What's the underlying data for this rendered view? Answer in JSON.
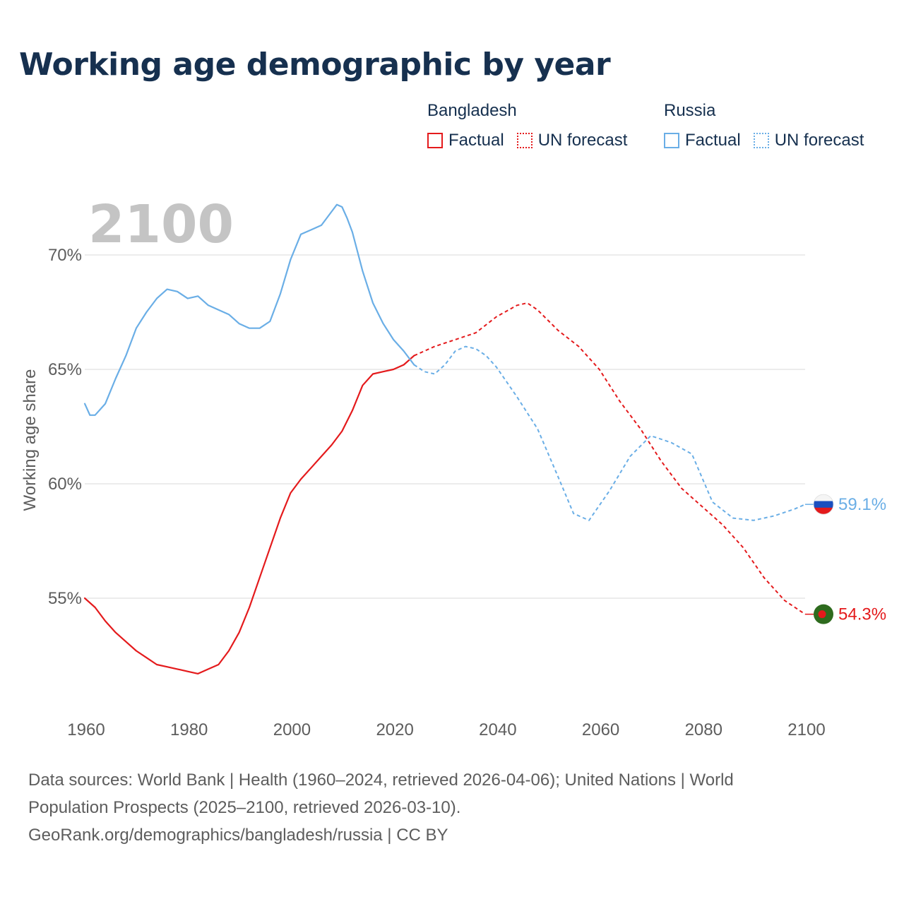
{
  "chart_data": {
    "type": "line",
    "title": "Working age demographic by year",
    "year_label": "2100",
    "ylabel": "Working age share",
    "xlabel": "",
    "xlim": [
      1960,
      2100
    ],
    "ylim": [
      50,
      72.5
    ],
    "y_ticks": [
      55,
      60,
      65,
      70
    ],
    "y_tick_labels": [
      "55%",
      "60%",
      "65%",
      "70%"
    ],
    "x_ticks": [
      1960,
      1980,
      2000,
      2020,
      2040,
      2060,
      2080,
      2100
    ],
    "x_tick_labels": [
      "1960",
      "1980",
      "2000",
      "2020",
      "2040",
      "2060",
      "2080",
      "2100"
    ],
    "legend": {
      "groups": [
        {
          "name": "Bangladesh",
          "items": [
            "Factual",
            "UN forecast"
          ]
        },
        {
          "name": "Russia",
          "items": [
            "Factual",
            "UN forecast"
          ]
        }
      ]
    },
    "series": [
      {
        "name": "Bangladesh",
        "color": "#e41a1c",
        "factual": {
          "x": [
            1960,
            1962,
            1964,
            1966,
            1968,
            1970,
            1972,
            1974,
            1976,
            1978,
            1980,
            1982,
            1984,
            1986,
            1988,
            1990,
            1992,
            1994,
            1996,
            1998,
            2000,
            2002,
            2004,
            2006,
            2008,
            2010,
            2012,
            2014,
            2016,
            2018,
            2020,
            2022,
            2024
          ],
          "y": [
            55.0,
            54.6,
            54.0,
            53.5,
            53.1,
            52.7,
            52.4,
            52.1,
            52.0,
            51.9,
            51.8,
            51.7,
            51.9,
            52.1,
            52.7,
            53.5,
            54.6,
            55.9,
            57.2,
            58.5,
            59.6,
            60.2,
            60.7,
            61.2,
            61.7,
            62.3,
            63.2,
            64.3,
            64.8,
            64.9,
            65.0,
            65.2,
            65.6
          ]
        },
        "forecast": {
          "x": [
            2024,
            2028,
            2032,
            2036,
            2040,
            2044,
            2046,
            2048,
            2052,
            2056,
            2060,
            2064,
            2068,
            2072,
            2076,
            2080,
            2084,
            2088,
            2092,
            2096,
            2100
          ],
          "y": [
            65.6,
            66.0,
            66.3,
            66.6,
            67.3,
            67.8,
            67.9,
            67.6,
            66.7,
            66.0,
            65.0,
            63.6,
            62.4,
            61.0,
            59.8,
            59.0,
            58.2,
            57.2,
            55.9,
            54.9,
            54.3
          ]
        },
        "end_label": "54.3%"
      },
      {
        "name": "Russia",
        "color": "#6aaee6",
        "factual": {
          "x": [
            1960,
            1961,
            1962,
            1964,
            1966,
            1968,
            1970,
            1972,
            1974,
            1976,
            1978,
            1980,
            1982,
            1984,
            1986,
            1988,
            1990,
            1992,
            1994,
            1996,
            1998,
            2000,
            2002,
            2004,
            2006,
            2008,
            2009,
            2010,
            2011,
            2012,
            2014,
            2016,
            2018,
            2020,
            2022,
            2024
          ],
          "y": [
            63.5,
            63.0,
            63.0,
            63.5,
            64.6,
            65.6,
            66.8,
            67.5,
            68.1,
            68.5,
            68.4,
            68.1,
            68.2,
            67.8,
            67.6,
            67.4,
            67.0,
            66.8,
            66.8,
            67.1,
            68.3,
            69.8,
            70.9,
            71.1,
            71.3,
            71.9,
            72.2,
            72.1,
            71.6,
            71.0,
            69.3,
            67.9,
            67.0,
            66.3,
            65.8,
            65.2
          ]
        },
        "forecast": {
          "x": [
            2024,
            2026,
            2028,
            2030,
            2032,
            2034,
            2036,
            2038,
            2040,
            2044,
            2048,
            2052,
            2055,
            2058,
            2062,
            2066,
            2070,
            2074,
            2078,
            2082,
            2086,
            2090,
            2094,
            2098,
            2100
          ],
          "y": [
            65.2,
            64.9,
            64.8,
            65.2,
            65.8,
            66.0,
            65.9,
            65.6,
            65.1,
            63.8,
            62.4,
            60.3,
            58.7,
            58.4,
            59.7,
            61.2,
            62.1,
            61.8,
            61.3,
            59.2,
            58.5,
            58.4,
            58.6,
            58.9,
            59.1
          ]
        },
        "end_label": "59.1%"
      }
    ]
  },
  "footer": {
    "line1": "Data sources: World Bank | Health (1960–2024, retrieved 2026-04-06); United Nations | World",
    "line2": "Population Prospects (2025–2100, retrieved 2026-03-10).",
    "line3": "GeoRank.org/demographics/bangladesh/russia | CC BY"
  },
  "flags": [
    {
      "name": "Bangladesh",
      "field": "#2e6b1e",
      "disc": "#e41a1c"
    },
    {
      "name": "Russia",
      "stripes": [
        "#f5f5f5",
        "#1b4fbf",
        "#e41a1c"
      ]
    }
  ]
}
